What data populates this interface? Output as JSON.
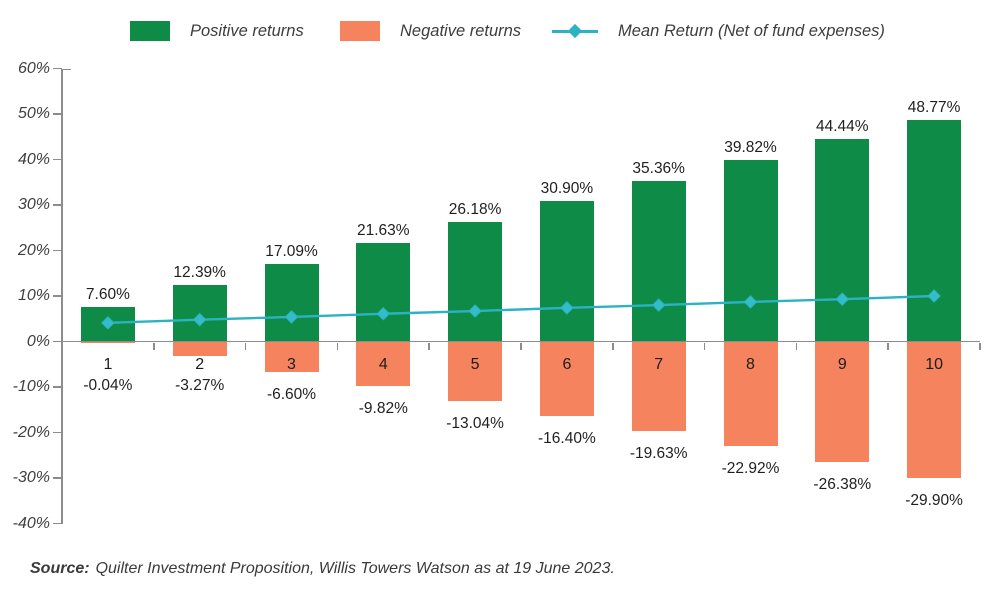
{
  "legend": {
    "items": [
      {
        "label": "Positive returns",
        "marker": "square",
        "color": "#0E8B46"
      },
      {
        "label": "Negative returns",
        "marker": "square",
        "color": "#F5845E"
      },
      {
        "label": "Mean Return (Net of fund expenses)",
        "marker": "line-diamond",
        "color": "#2BB3C4"
      }
    ]
  },
  "chart_data": {
    "type": "bar",
    "title": "",
    "categories": [
      "1",
      "2",
      "3",
      "4",
      "5",
      "6",
      "7",
      "8",
      "9",
      "10"
    ],
    "series": [
      {
        "name": "Positive returns",
        "type": "bar",
        "color": "#0E8B46",
        "values": [
          7.6,
          12.39,
          17.09,
          21.63,
          26.18,
          30.9,
          35.36,
          39.82,
          44.44,
          48.77
        ]
      },
      {
        "name": "Negative returns",
        "type": "bar",
        "color": "#F5845E",
        "values": [
          -0.04,
          -3.27,
          -6.6,
          -9.82,
          -13.04,
          -16.4,
          -19.63,
          -22.92,
          -26.38,
          -29.9
        ]
      },
      {
        "name": "Mean Return (Net of fund expenses)",
        "type": "line",
        "color": "#2BB3C4",
        "marker": "diamond",
        "values_estimated": [
          4.1,
          4.8,
          5.4,
          6.1,
          6.7,
          7.4,
          8.0,
          8.7,
          9.3,
          10.0
        ]
      }
    ],
    "value_labels": {
      "positive": [
        "7.60%",
        "12.39%",
        "17.09%",
        "21.63%",
        "26.18%",
        "30.90%",
        "35.36%",
        "39.82%",
        "44.44%",
        "48.77%"
      ],
      "negative": [
        "-0.04%",
        "-3.27%",
        "-6.60%",
        "-9.82%",
        "-13.04%",
        "-16.40%",
        "-19.63%",
        "-22.92%",
        "-26.38%",
        "-29.90%"
      ]
    },
    "y_axis": {
      "min": -40,
      "max": 60,
      "step": 10,
      "tick_labels": [
        "60%",
        "50%",
        "40%",
        "30%",
        "20%",
        "10%",
        "0%",
        "-10%",
        "-20%",
        "-30%",
        "-40%"
      ]
    },
    "grid": false,
    "legend_position": "top"
  },
  "source": {
    "prefix": "Source:",
    "text": "Quilter Investment Proposition, Willis Towers Watson as at 19 June 2023."
  },
  "colors": {
    "positive": "#0E8B46",
    "negative": "#F5845E",
    "mean_line": "#2BB3C4",
    "axis": "#8C8C8C",
    "label_text": "#1F1F1F",
    "muted_text": "#3D3D3D",
    "background": "#FFFFFF"
  }
}
